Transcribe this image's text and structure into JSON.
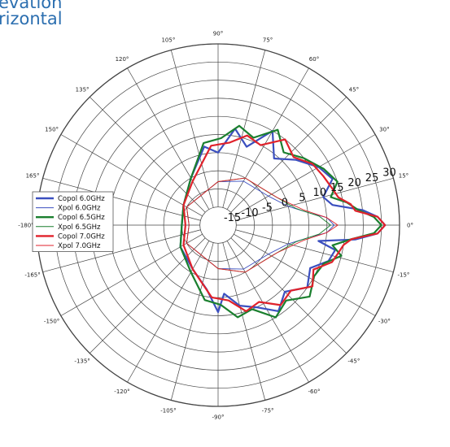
{
  "header": {
    "title_line_1": "evation",
    "title_line_2": "rizontal"
  },
  "colors": {
    "title": "#2c6fb0",
    "blue": "#3b4fbf",
    "green": "#1a7f2e",
    "red": "#e0222b",
    "grid": "#444444"
  },
  "chart_data": {
    "type": "polar",
    "title": "",
    "angle_ticks": [
      "90°",
      "75°",
      "60°",
      "45°",
      "30°",
      "15°",
      "0°",
      "-15°",
      "-30°",
      "-45°",
      "-60°",
      "-75°",
      "-90°",
      "-105°",
      "-120°",
      "-135°",
      "-150°",
      "-165°",
      "-180°",
      "165°",
      "150°",
      "135°",
      "120°",
      "105°"
    ],
    "angle_values": [
      90,
      75,
      60,
      45,
      30,
      15,
      0,
      -15,
      -30,
      -45,
      -60,
      -75,
      -90,
      -105,
      -120,
      -135,
      -150,
      -165,
      -180,
      165,
      150,
      135,
      120,
      105
    ],
    "radial_tick_labels": [
      "-15",
      "-10",
      "-5",
      "0",
      "5",
      "10",
      "15",
      "20",
      "25",
      "30"
    ],
    "radial_values": [
      -15,
      -10,
      -5,
      0,
      5,
      10,
      15,
      20,
      25,
      30
    ],
    "r_range": [
      -20,
      30
    ],
    "grid": true,
    "legend_position": "left",
    "legend": [
      {
        "name": "Copol 6.0GHz",
        "color": "#3b4fbf",
        "style": "thick"
      },
      {
        "name": "Xpol 6.0GHz",
        "color": "#3b4fbf",
        "style": "thin"
      },
      {
        "name": "Copol 6.5GHz",
        "color": "#1a7f2e",
        "style": "thick"
      },
      {
        "name": "Xpol 6.5GHz",
        "color": "#1a7f2e",
        "style": "thin"
      },
      {
        "name": "Copol 7.0GHz",
        "color": "#e0222b",
        "style": "thick"
      },
      {
        "name": "Xpol 7.0GHz",
        "color": "#e0222b",
        "style": "thin"
      }
    ],
    "series": [
      {
        "name": "Copol 6.0GHz",
        "angles": [
          0,
          -3,
          -6,
          -9,
          -12,
          -18,
          -25,
          -35,
          -45,
          -55,
          -65,
          -75,
          -85,
          -90,
          -100,
          -120,
          -150,
          -180,
          150,
          120,
          100,
          90,
          80,
          70,
          60,
          50,
          40,
          30,
          22,
          15,
          10,
          6,
          3
        ],
        "values": [
          26,
          24,
          18,
          8,
          13,
          12,
          8,
          10,
          6,
          9,
          5,
          3,
          -1,
          4,
          -2,
          -6,
          -8,
          -10,
          -9,
          -5,
          2,
          0,
          7,
          3,
          10,
          4,
          8,
          12,
          14,
          10,
          12,
          20,
          24
        ]
      },
      {
        "name": "Xpol 6.0GHz",
        "angles": [
          0,
          -4,
          -8,
          -15,
          -30,
          -60,
          -90,
          -150,
          180,
          150,
          90,
          60,
          30,
          15,
          8,
          4
        ],
        "values": [
          12,
          10,
          5,
          0,
          -4,
          -6,
          -8,
          -10,
          -12,
          -10,
          -8,
          -6,
          -4,
          0,
          5,
          10
        ]
      },
      {
        "name": "Copol 6.5GHz",
        "angles": [
          0,
          -3,
          -6,
          -10,
          -14,
          -20,
          -28,
          -38,
          -48,
          -58,
          -68,
          -78,
          -88,
          -100,
          -120,
          -150,
          -180,
          150,
          120,
          100,
          88,
          78,
          68,
          58,
          48,
          38,
          28,
          20,
          14,
          10,
          6,
          3
        ],
        "values": [
          25,
          23,
          17,
          12,
          15,
          11,
          10,
          12,
          8,
          10,
          5,
          6,
          2,
          1,
          -5,
          -8,
          -10,
          -9,
          -5,
          3,
          4,
          8,
          6,
          11,
          7,
          10,
          13,
          15,
          12,
          16,
          19,
          23
        ]
      },
      {
        "name": "Xpol 6.5GHz",
        "angles": [
          0,
          -5,
          -12,
          -30,
          -60,
          -90,
          -150,
          180,
          150,
          90,
          60,
          30,
          12,
          5
        ],
        "values": [
          11,
          8,
          2,
          -3,
          -5,
          -8,
          -10,
          -12,
          -10,
          -8,
          -5,
          -3,
          2,
          8
        ]
      },
      {
        "name": "Copol 7.0GHz",
        "angles": [
          0,
          -3,
          -6,
          -9,
          -13,
          -18,
          -25,
          -33,
          -42,
          -52,
          -62,
          -72,
          -82,
          -95,
          -120,
          -150,
          -180,
          150,
          120,
          95,
          82,
          72,
          62,
          52,
          42,
          33,
          25,
          18,
          13,
          9,
          6,
          3
        ],
        "values": [
          26,
          24,
          17,
          15,
          14,
          13,
          9,
          11,
          7,
          8,
          4,
          5,
          1,
          0,
          -6,
          -9,
          -11,
          -9,
          -6,
          2,
          3,
          6,
          5,
          10,
          8,
          11,
          12,
          13,
          14,
          17,
          18,
          24
        ]
      },
      {
        "name": "Xpol 7.0GHz",
        "angles": [
          0,
          -4,
          -10,
          -25,
          -60,
          -90,
          -150,
          180,
          150,
          90,
          60,
          25,
          10,
          4
        ],
        "values": [
          13,
          10,
          4,
          -2,
          -5,
          -8,
          -10,
          -12,
          -10,
          -8,
          -5,
          -2,
          4,
          10
        ]
      }
    ]
  }
}
